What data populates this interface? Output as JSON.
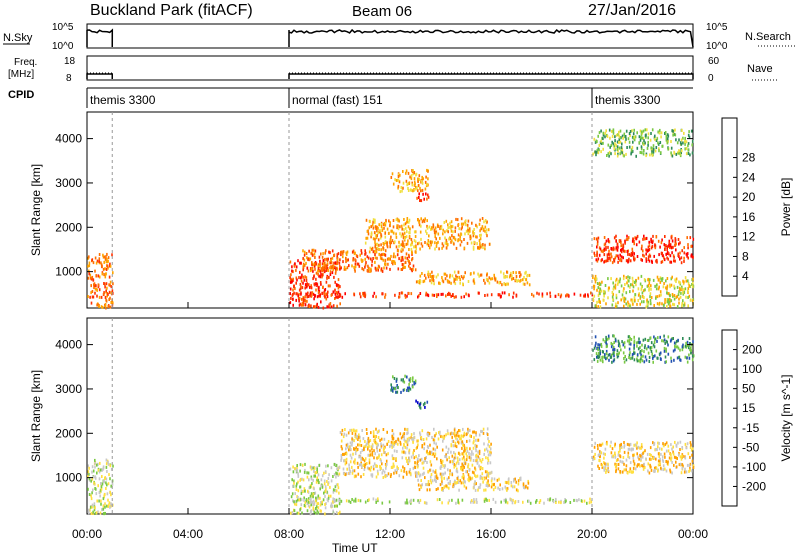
{
  "header": {
    "station": "Buckland Park (fitACF)",
    "beam": "Beam 06",
    "date": "27/Jan/2016"
  },
  "labels": {
    "nsky": "N.Sky",
    "nsearch": "N.Search",
    "freq": "Freq.",
    "freq_unit": "[MHz]",
    "nave": "Nave",
    "cpid": "CPID",
    "noise_tick_top": "10^5",
    "noise_tick_bottom": "10^0",
    "freq_tick_top": "18",
    "freq_tick_bottom": "8",
    "nave_tick_top": "60",
    "nave_tick_bottom": "0"
  },
  "cpid_segments": [
    {
      "label": "themis 3300",
      "start_h": 0.0,
      "end_h": 1.0
    },
    {
      "label": "normal (fast) 151",
      "start_h": 8.0,
      "end_h": 20.0
    },
    {
      "label": "themis 3300",
      "start_h": 20.0,
      "end_h": 24.0
    }
  ],
  "colors": {
    "power": [
      "#0000ff",
      "#2850c8",
      "#2e8b57",
      "#7ac943",
      "#f0e040",
      "#ffa500",
      "#ff7000",
      "#ff3000",
      "#ff0000"
    ],
    "velocity": [
      "#ff0000",
      "#ff6000",
      "#ffa000",
      "#ffe040",
      "#c8c8c8",
      "#7ac943",
      "#2e8b57",
      "#2050b0",
      "#0000c8"
    ]
  },
  "chart_data": [
    {
      "type": "heatmap",
      "title": "",
      "xlabel": "Time UT",
      "ylabel": "Slant Range [km]",
      "colorbar_label": "Power [dB]",
      "colorbar_ticks": [
        "4",
        "8",
        "12",
        "16",
        "20",
        "24",
        "28"
      ],
      "zlim": [
        0,
        32
      ],
      "xlim_hours": [
        0,
        24
      ],
      "x_ticks": [
        "00:00",
        "04:00",
        "08:00",
        "12:00",
        "16:00",
        "20:00",
        "00:00"
      ],
      "ylim": [
        180,
        4600
      ],
      "y_ticks": [
        1000,
        2000,
        3000,
        4000
      ],
      "regions": [
        {
          "t0": 0.0,
          "t1": 1.0,
          "r0": 180,
          "r1": 1400,
          "level": 24
        },
        {
          "t0": 8.0,
          "t1": 10.0,
          "r0": 180,
          "r1": 1300,
          "level": 28
        },
        {
          "t0": 8.0,
          "t1": 20.0,
          "r0": 420,
          "r1": 520,
          "level": 26
        },
        {
          "t0": 8.5,
          "t1": 13.0,
          "r0": 1000,
          "r1": 1500,
          "level": 22
        },
        {
          "t0": 11.0,
          "t1": 16.0,
          "r0": 1500,
          "r1": 2200,
          "level": 20
        },
        {
          "t0": 12.0,
          "t1": 13.5,
          "r0": 2800,
          "r1": 3300,
          "level": 20
        },
        {
          "t0": 13.0,
          "t1": 13.5,
          "r0": 2600,
          "r1": 2800,
          "level": 28
        },
        {
          "t0": 13.0,
          "t1": 17.5,
          "r0": 700,
          "r1": 1000,
          "level": 18
        },
        {
          "t0": 20.0,
          "t1": 24.0,
          "r0": 1200,
          "r1": 1800,
          "level": 26
        },
        {
          "t0": 20.0,
          "t1": 24.0,
          "r0": 200,
          "r1": 900,
          "level": 16
        },
        {
          "t0": 20.0,
          "t1": 24.0,
          "r0": 3600,
          "r1": 4200,
          "level": 10
        }
      ]
    },
    {
      "type": "heatmap",
      "title": "",
      "xlabel": "Time UT",
      "ylabel": "Slant Range [km]",
      "colorbar_label": "Velocity [m s^-1]",
      "colorbar_ticks": [
        "200",
        "100",
        "50",
        "15",
        "-15",
        "-50",
        "-100",
        "-200"
      ],
      "zlim": [
        -250,
        250
      ],
      "xlim_hours": [
        0,
        24
      ],
      "x_ticks": [
        "00:00",
        "04:00",
        "08:00",
        "12:00",
        "16:00",
        "20:00",
        "00:00"
      ],
      "ylim": [
        180,
        4600
      ],
      "y_ticks": [
        1000,
        2000,
        3000,
        4000
      ],
      "regions": [
        {
          "t0": 0.0,
          "t1": 1.0,
          "r0": 180,
          "r1": 1400,
          "level": 0
        },
        {
          "t0": 8.0,
          "t1": 10.0,
          "r0": 180,
          "r1": 1300,
          "level": 0
        },
        {
          "t0": 8.0,
          "t1": 20.0,
          "r0": 420,
          "r1": 520,
          "level": -10
        },
        {
          "t0": 10.0,
          "t1": 16.0,
          "r0": 1000,
          "r1": 2100,
          "level": -40
        },
        {
          "t0": 12.0,
          "t1": 13.0,
          "r0": 2900,
          "r1": 3300,
          "level": 120
        },
        {
          "t0": 13.0,
          "t1": 13.5,
          "r0": 2550,
          "r1": 2750,
          "level": 180
        },
        {
          "t0": 13.0,
          "t1": 17.5,
          "r0": 700,
          "r1": 1000,
          "level": -60
        },
        {
          "t0": 20.0,
          "t1": 24.0,
          "r0": 1100,
          "r1": 1800,
          "level": -80
        },
        {
          "t0": 20.0,
          "t1": 24.0,
          "r0": 3600,
          "r1": 4200,
          "level": 150
        }
      ]
    }
  ]
}
